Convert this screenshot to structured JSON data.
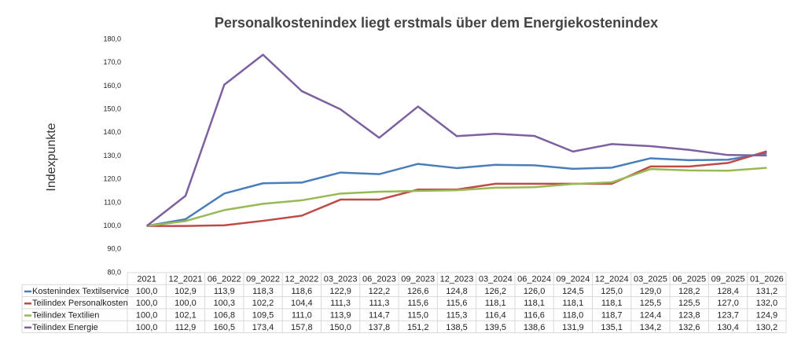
{
  "chart_data": {
    "type": "line",
    "title": "Personalkostenindex liegt erstmals über dem Energiekostenindex",
    "y_label": "Indexpunkte",
    "categories": [
      "2021",
      "12_2021",
      "06_2022",
      "09_2022",
      "12_2022",
      "03_2023",
      "06_2023",
      "09_2023",
      "12_2023",
      "03_2024",
      "06_2024",
      "09_2024",
      "12_2024",
      "03_2025",
      "06_2025",
      "09_2025",
      "01_2026"
    ],
    "ylim": [
      80,
      180
    ],
    "yticks": [
      {
        "value": 80,
        "label": "80,0"
      },
      {
        "value": 90,
        "label": "90,0"
      },
      {
        "value": 100,
        "label": "100,0"
      },
      {
        "value": 110,
        "label": "110,0"
      },
      {
        "value": 120,
        "label": "120,0"
      },
      {
        "value": 130,
        "label": "130,0"
      },
      {
        "value": 140,
        "label": "140,0"
      },
      {
        "value": 150,
        "label": "150,0"
      },
      {
        "value": 160,
        "label": "160,0"
      },
      {
        "value": 170,
        "label": "170,0"
      },
      {
        "value": 180,
        "label": "180,0"
      }
    ],
    "grid": false,
    "series": [
      {
        "name": "Kostenindex Textilservice",
        "color": "#4a7ebb",
        "values": [
          100.0,
          102.9,
          113.9,
          118.3,
          118.6,
          122.9,
          122.2,
          126.6,
          124.8,
          126.2,
          126.0,
          124.5,
          125.0,
          129.0,
          128.2,
          128.4,
          131.2
        ],
        "value_labels": [
          "100,0",
          "102,9",
          "113,9",
          "118,3",
          "118,6",
          "122,9",
          "122,2",
          "126,6",
          "124,8",
          "126,2",
          "126,0",
          "124,5",
          "125,0",
          "129,0",
          "128,2",
          "128,4",
          "131,2"
        ]
      },
      {
        "name": "Teilindex Personalkosten",
        "color": "#be4b48",
        "values": [
          100.0,
          100.0,
          100.3,
          102.2,
          104.4,
          111.3,
          111.3,
          115.6,
          115.6,
          118.1,
          118.1,
          118.1,
          118.1,
          125.5,
          125.5,
          127.0,
          132.0
        ],
        "value_labels": [
          "100,0",
          "100,0",
          "100,3",
          "102,2",
          "104,4",
          "111,3",
          "111,3",
          "115,6",
          "115,6",
          "118,1",
          "118,1",
          "118,1",
          "118,1",
          "125,5",
          "125,5",
          "127,0",
          "132,0"
        ]
      },
      {
        "name": "Teilindex Textilien",
        "color": "#98b954",
        "values": [
          100.0,
          102.1,
          106.8,
          109.5,
          111.0,
          113.9,
          114.7,
          115.0,
          115.3,
          116.4,
          116.6,
          118.0,
          118.7,
          124.4,
          123.8,
          123.7,
          124.9
        ],
        "value_labels": [
          "100,0",
          "102,1",
          "106,8",
          "109,5",
          "111,0",
          "113,9",
          "114,7",
          "115,0",
          "115,3",
          "116,4",
          "116,6",
          "118,0",
          "118,7",
          "124,4",
          "123,8",
          "123,7",
          "124,9"
        ]
      },
      {
        "name": "Teilindex Energie",
        "color": "#7d60a0",
        "values": [
          100.0,
          112.9,
          160.5,
          173.4,
          157.8,
          150.0,
          137.8,
          151.2,
          138.5,
          139.5,
          138.6,
          131.9,
          135.1,
          134.2,
          132.6,
          130.4,
          130.2
        ],
        "value_labels": [
          "100,0",
          "112,9",
          "160,5",
          "173,4",
          "157,8",
          "150,0",
          "137,8",
          "151,2",
          "138,5",
          "139,5",
          "138,6",
          "131,9",
          "135,1",
          "134,2",
          "132,6",
          "130,4",
          "130,2"
        ]
      }
    ]
  }
}
